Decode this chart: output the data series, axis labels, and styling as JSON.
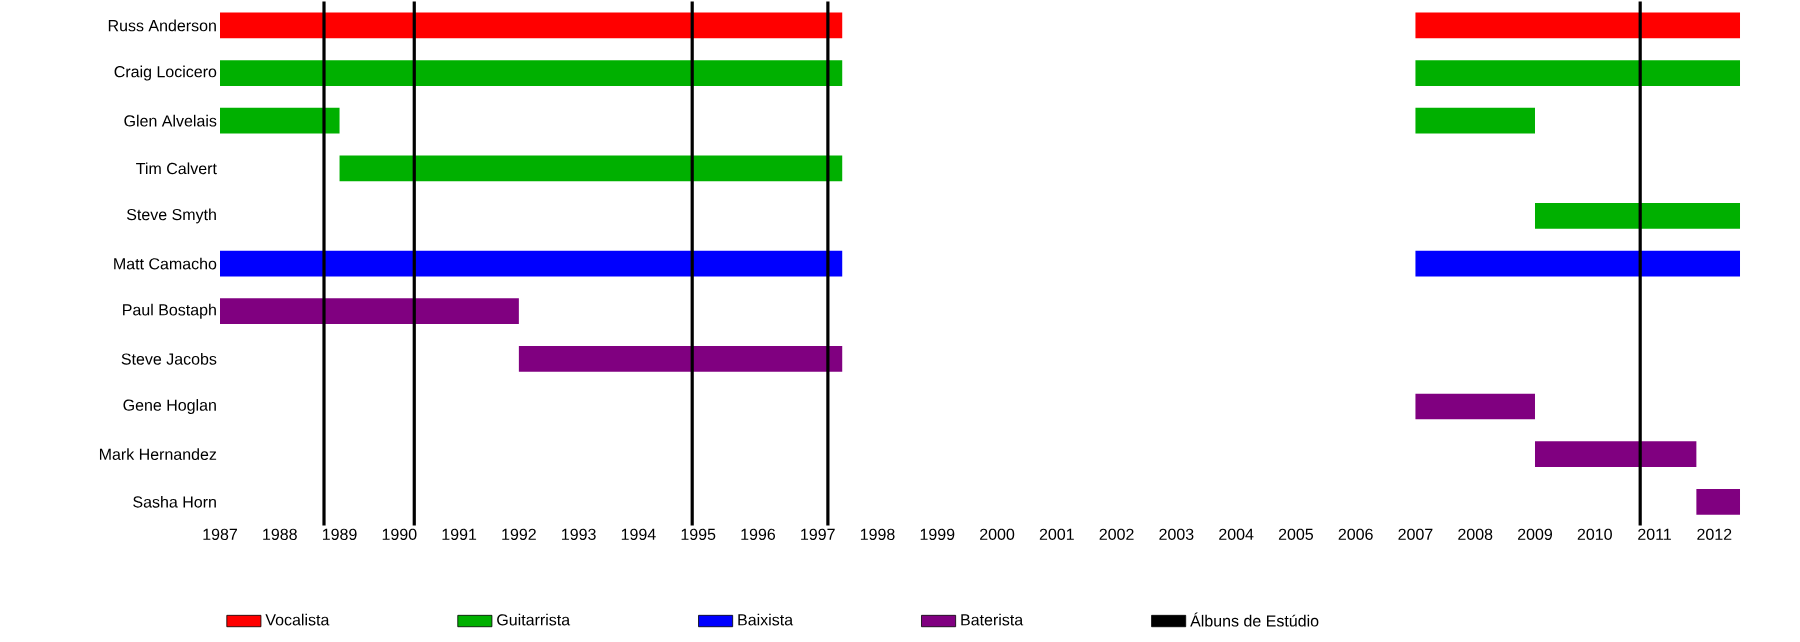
{
  "chart_data": {
    "type": "bar",
    "orientation": "horizontal",
    "categories": [
      "Russ Anderson",
      "Craig Locicero",
      "Glen Alvelais",
      "Tim Calvert",
      "Steve Smyth",
      "Matt Camacho",
      "Paul Bostaph",
      "Steve Jacobs",
      "Gene Hoglan",
      "Mark Hernandez",
      "Sasha Horn"
    ],
    "xlim": [
      1987,
      2012.43
    ],
    "xticks": [
      1987,
      1988,
      1989,
      1990,
      1991,
      1992,
      1993,
      1994,
      1995,
      1996,
      1997,
      1998,
      1999,
      2000,
      2001,
      2002,
      2003,
      2004,
      2005,
      2006,
      2007,
      2008,
      2009,
      2010,
      2011,
      2012
    ],
    "legend": "bottom",
    "series": [
      {
        "name": "Vocalista",
        "color": "#ff0000",
        "base": [
          1987,
          null,
          null,
          null,
          null,
          null,
          null,
          null,
          null,
          null,
          null
        ],
        "values": [
          10.41,
          null,
          null,
          null,
          null,
          null,
          null,
          null,
          null,
          null,
          null
        ]
      },
      {
        "color": "#ff0000",
        "base": [
          2007,
          null,
          null,
          null,
          null,
          null,
          null,
          null,
          null,
          null,
          null
        ],
        "values": [
          5.43,
          null,
          null,
          null,
          null,
          null,
          null,
          null,
          null,
          null,
          null
        ]
      },
      {
        "name": "Guitarrista",
        "color": "#00b000",
        "base": [
          null,
          1987,
          1987,
          1989,
          null,
          null,
          null,
          null,
          null,
          null,
          null
        ],
        "values": [
          null,
          10.41,
          2,
          8.41,
          null,
          null,
          null,
          null,
          null,
          null,
          null
        ]
      },
      {
        "color": "#00b000",
        "base": [
          null,
          2007,
          2007,
          null,
          2009,
          null,
          null,
          null,
          null,
          null,
          null
        ],
        "values": [
          null,
          5.43,
          2,
          null,
          3.43,
          null,
          null,
          null,
          null,
          null,
          null
        ]
      },
      {
        "name": "Baixista",
        "color": "#0000ff",
        "base": [
          null,
          null,
          null,
          null,
          null,
          1987,
          null,
          null,
          null,
          null,
          null
        ],
        "values": [
          null,
          null,
          null,
          null,
          null,
          10.41,
          null,
          null,
          null,
          null,
          null
        ]
      },
      {
        "color": "#0000ff",
        "base": [
          null,
          null,
          null,
          null,
          null,
          2007,
          null,
          null,
          null,
          null,
          null
        ],
        "values": [
          null,
          null,
          null,
          null,
          null,
          5.43,
          null,
          null,
          null,
          null,
          null
        ]
      },
      {
        "name": "Baterista",
        "color": "#800080",
        "base": [
          null,
          null,
          null,
          null,
          null,
          null,
          1987,
          1992,
          2007,
          2009,
          2011.7
        ],
        "values": [
          null,
          null,
          null,
          null,
          null,
          null,
          5,
          5.41,
          2,
          2.7,
          0.73
        ]
      }
    ],
    "ref_lines": [
      {
        "axis": "x",
        "value": 1988.74,
        "color": "#000000",
        "label": "Álbuns de Estúdio"
      },
      {
        "axis": "x",
        "value": 1990.25,
        "color": "#000000"
      },
      {
        "axis": "x",
        "value": 1994.9,
        "color": "#000000"
      },
      {
        "axis": "x",
        "value": 1997.17,
        "color": "#000000"
      },
      {
        "axis": "x",
        "value": 2010.76,
        "color": "#000000"
      }
    ]
  }
}
